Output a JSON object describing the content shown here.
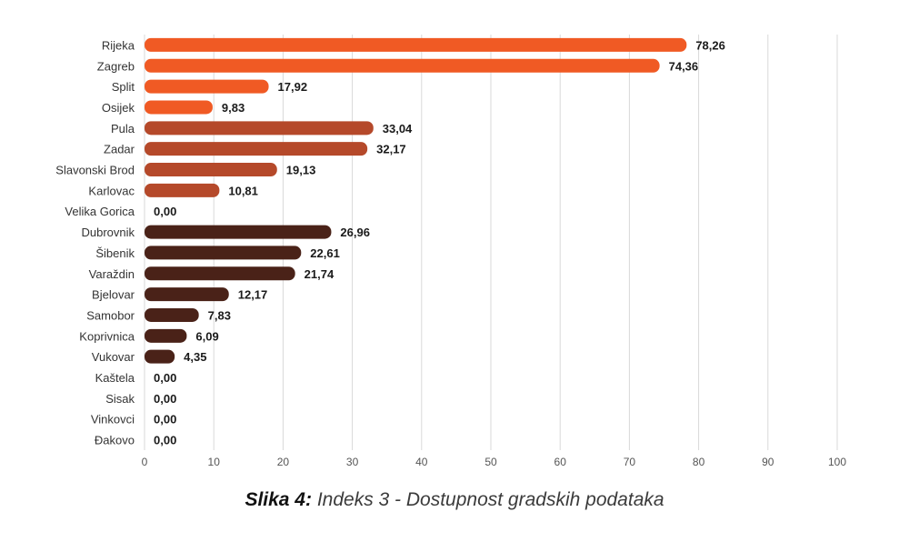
{
  "chart_data": {
    "type": "bar",
    "orientation": "horizontal",
    "categories": [
      "Rijeka",
      "Zagreb",
      "Split",
      "Osijek",
      "Pula",
      "Zadar",
      "Slavonski Brod",
      "Karlovac",
      "Velika Gorica",
      "Dubrovnik",
      "Šibenik",
      "Varaždin",
      "Bjelovar",
      "Samobor",
      "Koprivnica",
      "Vukovar",
      "Kaštela",
      "Sisak",
      "Vinkovci",
      "Đakovo"
    ],
    "values": [
      78.26,
      74.36,
      17.92,
      9.83,
      33.04,
      32.17,
      19.13,
      10.81,
      0.0,
      26.96,
      22.61,
      21.74,
      12.17,
      7.83,
      6.09,
      4.35,
      0.0,
      0.0,
      0.0,
      0.0
    ],
    "value_labels": [
      "78,26",
      "74,36",
      "17,92",
      "9,83",
      "33,04",
      "32,17",
      "19,13",
      "10,81",
      "0,00",
      "26,96",
      "22,61",
      "21,74",
      "12,17",
      "7,83",
      "6,09",
      "4,35",
      "0,00",
      "0,00",
      "0,00",
      "0,00"
    ],
    "bar_colors": [
      "#f05a24",
      "#f05a24",
      "#f05a24",
      "#f05a24",
      "#b5492a",
      "#b5492a",
      "#b5492a",
      "#b5492a",
      "#b5492a",
      "#4a2218",
      "#4a2218",
      "#4a2218",
      "#4a2218",
      "#4a2218",
      "#4a2218",
      "#4a2218",
      "#4a2218",
      "#4a2218",
      "#4a2218",
      "#4a2218"
    ],
    "xlim": [
      0,
      100
    ],
    "xticks": [
      0,
      10,
      20,
      30,
      40,
      50,
      60,
      70,
      80,
      90,
      100
    ],
    "grid": true,
    "colors": {
      "grid": "#d9d9d9",
      "axis_text": "#555555",
      "label_text": "#1a1a1a"
    }
  },
  "caption": {
    "prefix": "Slika 4:",
    "text": " Indeks 3 - Dostupnost gradskih podataka"
  }
}
